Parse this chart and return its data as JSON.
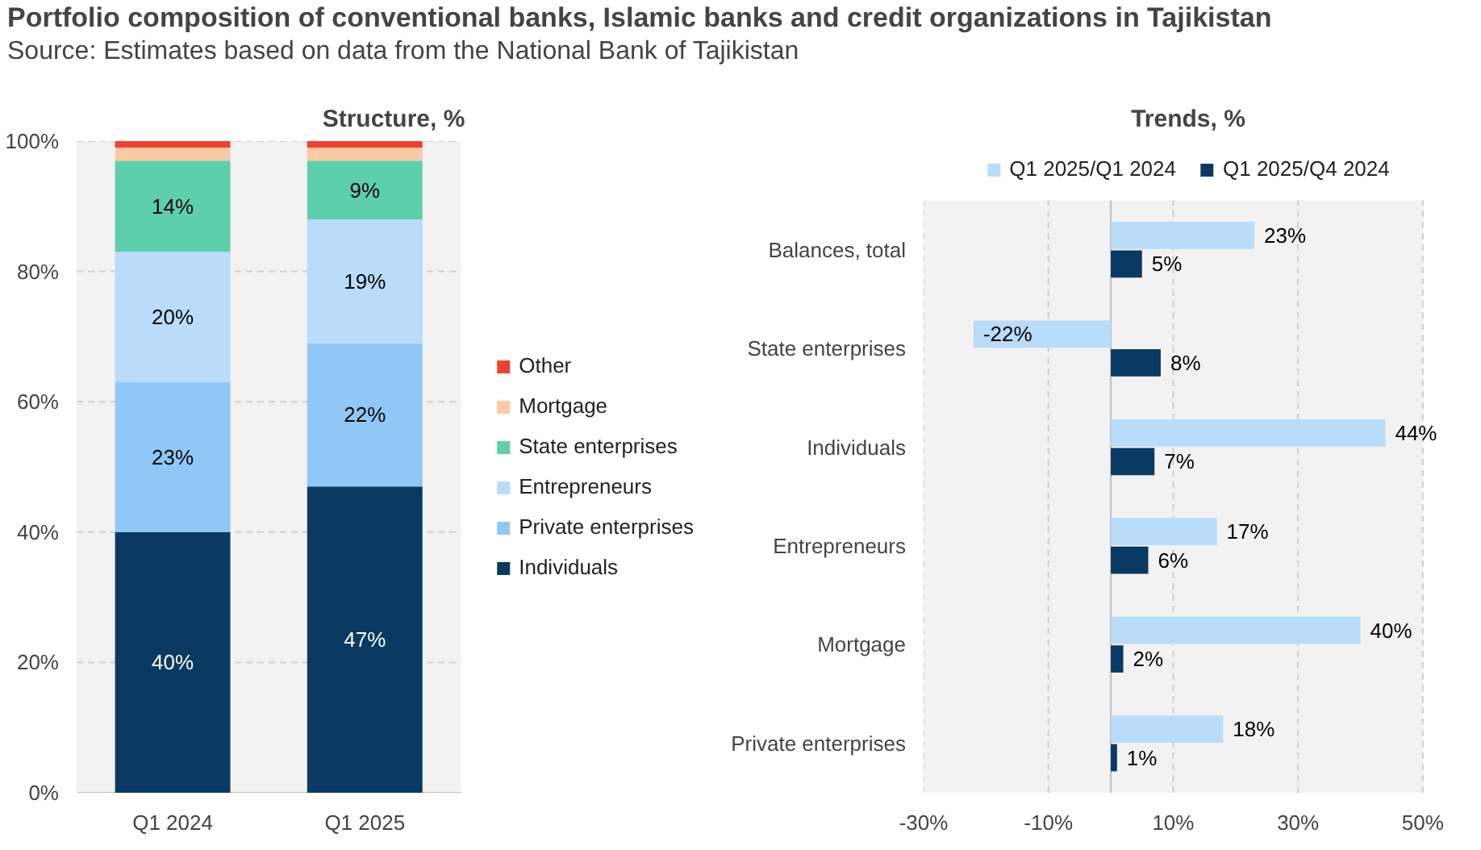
{
  "chart_data": [
    {
      "type": "other",
      "title": "Portfolio composition of conventional banks, Islamic banks and credit organizations in Tajikistan",
      "annotations": [
        "Source: Estimates based on data from the National Bank of Tajikistan"
      ]
    },
    {
      "type": "bar",
      "title": "Structure, %",
      "stacked": true,
      "categories": [
        "Q1 2024",
        "Q1 2025"
      ],
      "ylim": [
        0,
        100
      ],
      "yticks": [
        {
          "value": 0,
          "label": "0%"
        },
        {
          "value": 20,
          "label": "20%"
        },
        {
          "value": 40,
          "label": "40%"
        },
        {
          "value": 60,
          "label": "60%"
        },
        {
          "value": 80,
          "label": "80%"
        },
        {
          "value": 100,
          "label": "100%"
        }
      ],
      "grid": "y",
      "legend": "right",
      "series": [
        {
          "name": "Individuals",
          "color": "#0a3a63",
          "values": [
            40,
            47
          ],
          "value_labels": [
            "40%",
            "47%"
          ]
        },
        {
          "name": "Private enterprises",
          "color": "#8fc8f4",
          "values": [
            23,
            22
          ],
          "value_labels": [
            "23%",
            "22%"
          ]
        },
        {
          "name": "Entrepreneurs",
          "color": "#b8dcfa",
          "values": [
            20,
            19
          ],
          "value_labels": [
            "20%",
            "19%"
          ]
        },
        {
          "name": "State enterprises",
          "color": "#5dcfab",
          "values": [
            14,
            9
          ],
          "value_labels": [
            "14%",
            "9%"
          ]
        },
        {
          "name": "Mortgage",
          "color": "#fcc9a4",
          "values": [
            2,
            2
          ],
          "value_labels": [
            null,
            null
          ]
        },
        {
          "name": "Other",
          "color": "#ef4130",
          "values": [
            1,
            1
          ],
          "value_labels": [
            null,
            null
          ]
        }
      ]
    },
    {
      "type": "bar",
      "title": "Trends, %",
      "orientation": "horizontal",
      "categories": [
        "Balances, total",
        "State enterprises",
        "Individuals",
        "Entrepreneurs",
        "Mortgage",
        "Private enterprises"
      ],
      "xlim": [
        -30,
        50
      ],
      "xticks": [
        {
          "value": -30,
          "label": "-30%"
        },
        {
          "value": -10,
          "label": "-10%"
        },
        {
          "value": 10,
          "label": "10%"
        },
        {
          "value": 30,
          "label": "30%"
        },
        {
          "value": 50,
          "label": "50%"
        }
      ],
      "grid": "x",
      "legend": "top",
      "series": [
        {
          "name": "Q1 2025/Q1 2024",
          "color": "#b8dcfa",
          "values": [
            23,
            -22,
            44,
            17,
            40,
            18
          ],
          "value_labels": [
            "23%",
            "-22%",
            "44%",
            "17%",
            "40%",
            "18%"
          ]
        },
        {
          "name": "Q1 2025/Q4 2024",
          "color": "#0a3a63",
          "values": [
            5,
            8,
            7,
            6,
            2,
            1
          ],
          "value_labels": [
            "5%",
            "8%",
            "7%",
            "6%",
            "2%",
            "1%"
          ]
        }
      ]
    }
  ]
}
